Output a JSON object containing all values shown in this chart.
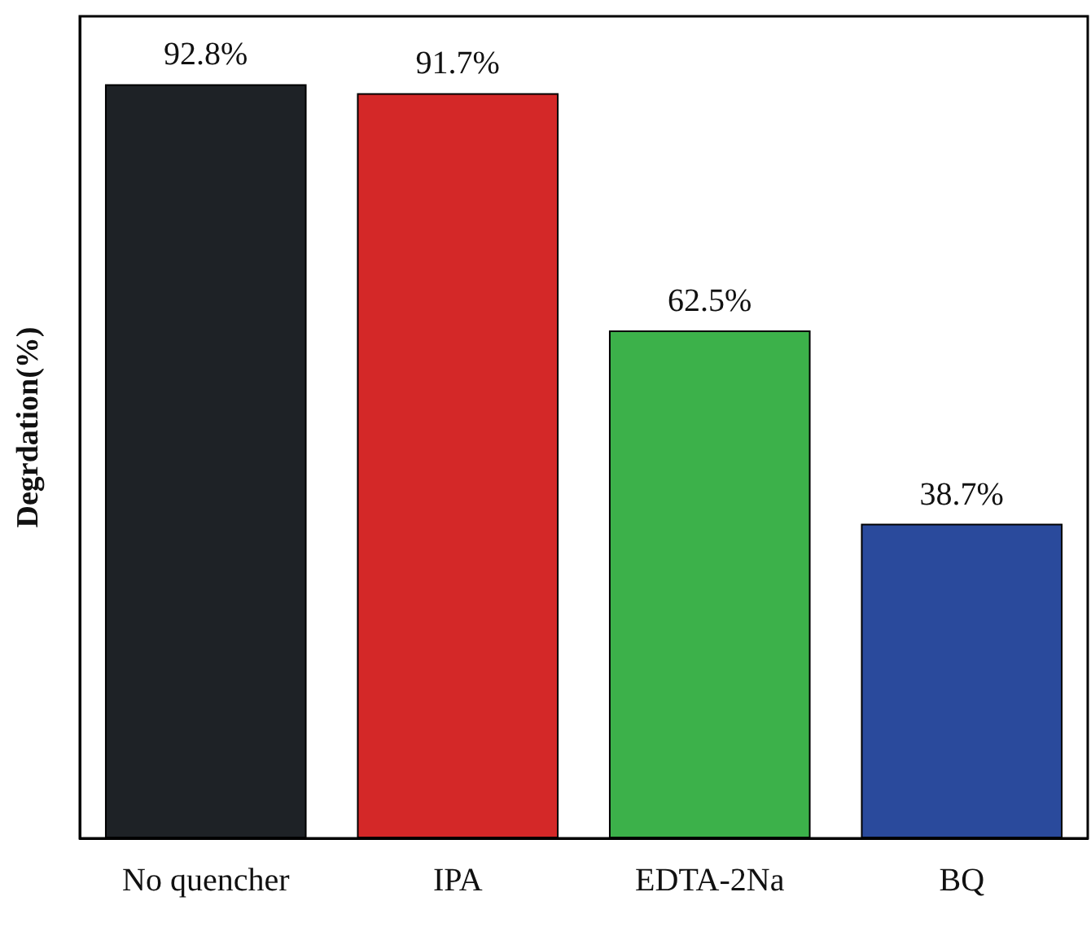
{
  "chart_data": {
    "type": "bar",
    "ylabel": "Degrdation(%)",
    "categories": [
      "No quencher",
      "IPA",
      "EDTA-2Na",
      "BQ"
    ],
    "values": [
      92.8,
      91.7,
      62.5,
      38.7
    ],
    "value_labels": [
      "92.8%",
      "91.7%",
      "62.5%",
      "38.7%"
    ],
    "colors": [
      "#1e2226",
      "#d42828",
      "#3cb14a",
      "#2a4a9c"
    ],
    "tick_labels": false
  }
}
